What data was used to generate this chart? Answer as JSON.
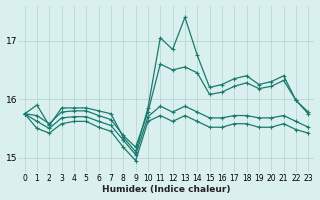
{
  "xlabel": "Humidex (Indice chaleur)",
  "bg_color": "#daf0ee",
  "grid_color": "#b8d8d4",
  "line_color": "#1a7a6e",
  "xlim": [
    -0.5,
    23.5
  ],
  "ylim": [
    14.75,
    17.6
  ],
  "yticks": [
    15,
    16,
    17
  ],
  "xticks": [
    0,
    1,
    2,
    3,
    4,
    5,
    6,
    7,
    8,
    9,
    10,
    11,
    12,
    13,
    14,
    15,
    16,
    17,
    18,
    19,
    20,
    21,
    22,
    23
  ],
  "series": [
    [
      15.75,
      15.9,
      15.55,
      15.85,
      15.85,
      15.85,
      15.8,
      15.75,
      15.35,
      15.1,
      15.85,
      17.05,
      16.85,
      17.4,
      16.75,
      16.2,
      16.25,
      16.35,
      16.4,
      16.25,
      16.3,
      16.4,
      15.98,
      15.75
    ],
    [
      15.75,
      15.72,
      15.58,
      15.78,
      15.8,
      15.8,
      15.72,
      15.65,
      15.38,
      15.18,
      15.78,
      16.6,
      16.5,
      16.55,
      16.45,
      16.08,
      16.12,
      16.22,
      16.28,
      16.18,
      16.22,
      16.32,
      15.98,
      15.78
    ],
    [
      15.75,
      15.62,
      15.5,
      15.68,
      15.7,
      15.7,
      15.62,
      15.55,
      15.3,
      15.05,
      15.7,
      15.88,
      15.78,
      15.88,
      15.78,
      15.68,
      15.68,
      15.72,
      15.72,
      15.68,
      15.68,
      15.72,
      15.62,
      15.52
    ],
    [
      15.75,
      15.5,
      15.42,
      15.58,
      15.62,
      15.62,
      15.52,
      15.45,
      15.18,
      14.95,
      15.62,
      15.72,
      15.62,
      15.72,
      15.62,
      15.52,
      15.52,
      15.58,
      15.58,
      15.52,
      15.52,
      15.58,
      15.48,
      15.42
    ]
  ]
}
